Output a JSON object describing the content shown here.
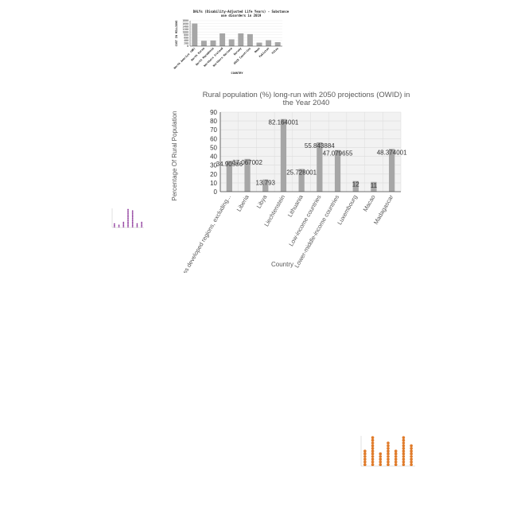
{
  "chart_data": [
    {
      "type": "bar",
      "title": "Rural population (%) long-run with 2050 projections (OWID) in the Year 2040",
      "xlabel": "Country",
      "ylabel": "Percentage Of Rural Population",
      "categories": [
        "Less developed regions, excluding...",
        "Liberia",
        "Libya",
        "Liechtenstein",
        "Lithuania",
        "Low-income countries",
        "Lower-middle-income countries",
        "Luxembourg",
        "Macao",
        "Madagascar"
      ],
      "values": [
        34.90586,
        37.067002,
        13.793,
        82.164001,
        25.728001,
        55.843884,
        47.079655,
        12,
        11,
        48.374001
      ],
      "value_labels": [
        "34.90586",
        "37.067002",
        "13.793",
        "82.164001",
        "25.728001",
        "55.843884",
        "47.079655",
        "12",
        "11",
        "48.374001"
      ],
      "yticks": [
        0,
        10,
        20,
        30,
        40,
        50,
        60,
        70,
        80,
        90
      ],
      "ylim": [
        0,
        90
      ],
      "grid": true,
      "colors": {
        "bar": "#a6a6a6",
        "grid": "#dcdcdc",
        "plot_bg": "#f2f2f2",
        "text": "#595959"
      }
    },
    {
      "type": "bar",
      "title": "DALYs (Disability-Adjusted Life Years) - Substance use disorders in 2019",
      "xlabel": "COUNTRY",
      "ylabel": "COST IN MILLIONS",
      "categories": [
        "North America (WB)",
        "North Korea",
        "North Macedonia",
        "Northern Ireland",
        "Northern Mariana",
        "Norway",
        "OECD Countries",
        "Oman",
        "Pakistan",
        "Palau"
      ],
      "values": [
        1600,
        380,
        400,
        900,
        480,
        900,
        850,
        250,
        420,
        280
      ],
      "yticks": [
        0,
        200,
        400,
        600,
        800,
        1000,
        1200,
        1400,
        1600,
        1800
      ],
      "ylim": [
        0,
        1800
      ],
      "grid": true,
      "colors": {
        "bar": "#a6a6a6",
        "text": "#222222"
      }
    },
    {
      "type": "scatter",
      "values": [
        0.25,
        0.15,
        0.3,
        1.0,
        0.9,
        0.2,
        0.3
      ],
      "colors": {
        "marker": "#8e3a9c"
      }
    },
    {
      "type": "scatter",
      "values": [
        0.55,
        1.0,
        0.45,
        0.85,
        0.5,
        1.0,
        0.7
      ],
      "colors": {
        "marker": "#e07b2a"
      }
    }
  ]
}
